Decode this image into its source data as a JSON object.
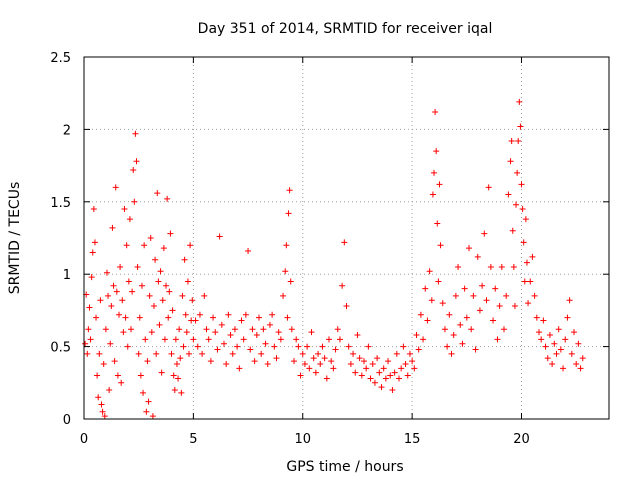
{
  "chart_data": {
    "type": "scatter",
    "title": "Day 351 of 2014, SRMTID for receiver iqal",
    "xlabel": "GPS time / hours",
    "ylabel": "SRMTID / TECUs",
    "xlim": [
      0,
      24
    ],
    "ylim": [
      0,
      2.5
    ],
    "xticks": [
      0,
      5,
      10,
      15,
      20
    ],
    "xtick_labels": [
      "0",
      "5",
      "10",
      "15",
      "20"
    ],
    "yticks": [
      0,
      0.5,
      1,
      1.5,
      2,
      2.5
    ],
    "ytick_labels": [
      "0",
      "0.5",
      "1",
      "1.5",
      "2",
      "2.5"
    ],
    "grid": true,
    "marker": "+",
    "series": [
      {
        "name": "SRMTID",
        "color": "#ff0000",
        "points": [
          [
            0.05,
            0.52
          ],
          [
            0.1,
            0.86
          ],
          [
            0.15,
            0.45
          ],
          [
            0.2,
            0.62
          ],
          [
            0.25,
            0.77
          ],
          [
            0.3,
            0.55
          ],
          [
            0.35,
            0.98
          ],
          [
            0.4,
            1.15
          ],
          [
            0.45,
            1.45
          ],
          [
            0.5,
            1.22
          ],
          [
            0.55,
            0.7
          ],
          [
            0.6,
            0.3
          ],
          [
            0.65,
            0.15
          ],
          [
            0.7,
            0.45
          ],
          [
            0.75,
            0.82
          ],
          [
            0.8,
            0.1
          ],
          [
            0.85,
            0.05
          ],
          [
            0.9,
            0.38
          ],
          [
            0.95,
            0.02
          ],
          [
            1.0,
            0.62
          ],
          [
            1.05,
            1.01
          ],
          [
            1.1,
            0.85
          ],
          [
            1.15,
            0.2
          ],
          [
            1.2,
            0.52
          ],
          [
            1.25,
            0.78
          ],
          [
            1.3,
            1.32
          ],
          [
            1.35,
            0.92
          ],
          [
            1.4,
            0.4
          ],
          [
            1.45,
            1.6
          ],
          [
            1.5,
            0.88
          ],
          [
            1.55,
            0.3
          ],
          [
            1.6,
            0.72
          ],
          [
            1.65,
            1.05
          ],
          [
            1.7,
            0.25
          ],
          [
            1.75,
            0.82
          ],
          [
            1.8,
            0.6
          ],
          [
            1.85,
            1.45
          ],
          [
            1.9,
            0.7
          ],
          [
            1.95,
            1.2
          ],
          [
            2.0,
            0.5
          ],
          [
            2.05,
            0.95
          ],
          [
            2.1,
            1.38
          ],
          [
            2.15,
            0.62
          ],
          [
            2.2,
            0.88
          ],
          [
            2.25,
            1.72
          ],
          [
            2.3,
            1.5
          ],
          [
            2.35,
            1.97
          ],
          [
            2.4,
            1.78
          ],
          [
            2.45,
            1.05
          ],
          [
            2.5,
            0.45
          ],
          [
            2.55,
            0.7
          ],
          [
            2.6,
            0.3
          ],
          [
            2.65,
            0.92
          ],
          [
            2.7,
            0.18
          ],
          [
            2.75,
            1.2
          ],
          [
            2.8,
            0.55
          ],
          [
            2.85,
            0.05
          ],
          [
            2.9,
            0.4
          ],
          [
            2.95,
            0.12
          ],
          [
            3.0,
            0.85
          ],
          [
            3.05,
            1.25
          ],
          [
            3.1,
            0.6
          ],
          [
            3.15,
            0.02
          ],
          [
            3.2,
            0.78
          ],
          [
            3.25,
            1.1
          ],
          [
            3.3,
            0.45
          ],
          [
            3.35,
            1.56
          ],
          [
            3.4,
            0.95
          ],
          [
            3.45,
            0.65
          ],
          [
            3.5,
            1.02
          ],
          [
            3.55,
            0.32
          ],
          [
            3.6,
            0.82
          ],
          [
            3.65,
            1.18
          ],
          [
            3.7,
            0.55
          ],
          [
            3.75,
            0.92
          ],
          [
            3.8,
            1.52
          ],
          [
            3.85,
            0.7
          ],
          [
            3.9,
            0.88
          ],
          [
            3.95,
            1.28
          ],
          [
            4.0,
            0.45
          ],
          [
            4.05,
            0.75
          ],
          [
            4.1,
            0.3
          ],
          [
            4.15,
            0.2
          ],
          [
            4.2,
            0.55
          ],
          [
            4.25,
            0.38
          ],
          [
            4.3,
            0.28
          ],
          [
            4.35,
            0.62
          ],
          [
            4.4,
            0.42
          ],
          [
            4.45,
            0.18
          ],
          [
            4.5,
            0.85
          ],
          [
            4.55,
            0.5
          ],
          [
            4.6,
            1.1
          ],
          [
            4.65,
            0.72
          ],
          [
            4.7,
            0.6
          ],
          [
            4.75,
            0.95
          ],
          [
            4.8,
            0.45
          ],
          [
            4.85,
            1.2
          ],
          [
            4.9,
            0.68
          ],
          [
            4.95,
            0.82
          ],
          [
            5.0,
            0.55
          ],
          [
            5.1,
            0.68
          ],
          [
            5.2,
            0.5
          ],
          [
            5.3,
            0.72
          ],
          [
            5.4,
            0.45
          ],
          [
            5.5,
            0.85
          ],
          [
            5.6,
            0.62
          ],
          [
            5.7,
            0.55
          ],
          [
            5.8,
            0.4
          ],
          [
            5.9,
            0.7
          ],
          [
            6.0,
            0.6
          ],
          [
            6.1,
            0.48
          ],
          [
            6.2,
            1.26
          ],
          [
            6.3,
            0.65
          ],
          [
            6.4,
            0.52
          ],
          [
            6.5,
            0.38
          ],
          [
            6.6,
            0.72
          ],
          [
            6.7,
            0.58
          ],
          [
            6.8,
            0.45
          ],
          [
            6.9,
            0.62
          ],
          [
            7.0,
            0.5
          ],
          [
            7.1,
            0.35
          ],
          [
            7.2,
            0.68
          ],
          [
            7.3,
            0.55
          ],
          [
            7.4,
            0.72
          ],
          [
            7.5,
            1.16
          ],
          [
            7.6,
            0.48
          ],
          [
            7.7,
            0.62
          ],
          [
            7.8,
            0.4
          ],
          [
            7.9,
            0.58
          ],
          [
            8.0,
            0.7
          ],
          [
            8.1,
            0.45
          ],
          [
            8.2,
            0.62
          ],
          [
            8.3,
            0.52
          ],
          [
            8.4,
            0.38
          ],
          [
            8.5,
            0.65
          ],
          [
            8.6,
            0.72
          ],
          [
            8.7,
            0.5
          ],
          [
            8.8,
            0.42
          ],
          [
            8.9,
            0.6
          ],
          [
            9.0,
            0.55
          ],
          [
            9.1,
            0.85
          ],
          [
            9.2,
            1.02
          ],
          [
            9.25,
            1.2
          ],
          [
            9.3,
            0.7
          ],
          [
            9.35,
            1.42
          ],
          [
            9.4,
            1.58
          ],
          [
            9.45,
            0.95
          ],
          [
            9.5,
            0.62
          ],
          [
            9.6,
            0.4
          ],
          [
            9.7,
            0.55
          ],
          [
            9.8,
            0.5
          ],
          [
            9.9,
            0.3
          ],
          [
            10.0,
            0.45
          ],
          [
            10.1,
            0.38
          ],
          [
            10.2,
            0.5
          ],
          [
            10.3,
            0.35
          ],
          [
            10.4,
            0.6
          ],
          [
            10.5,
            0.42
          ],
          [
            10.6,
            0.32
          ],
          [
            10.7,
            0.45
          ],
          [
            10.8,
            0.38
          ],
          [
            10.9,
            0.5
          ],
          [
            11.0,
            0.42
          ],
          [
            11.1,
            0.28
          ],
          [
            11.2,
            0.55
          ],
          [
            11.3,
            0.4
          ],
          [
            11.4,
            0.35
          ],
          [
            11.5,
            0.48
          ],
          [
            11.6,
            0.62
          ],
          [
            11.7,
            0.55
          ],
          [
            11.8,
            0.92
          ],
          [
            11.9,
            1.22
          ],
          [
            12.0,
            0.78
          ],
          [
            12.1,
            0.5
          ],
          [
            12.2,
            0.38
          ],
          [
            12.3,
            0.45
          ],
          [
            12.4,
            0.32
          ],
          [
            12.5,
            0.58
          ],
          [
            12.6,
            0.42
          ],
          [
            12.7,
            0.3
          ],
          [
            12.8,
            0.4
          ],
          [
            12.9,
            0.35
          ],
          [
            13.0,
            0.5
          ],
          [
            13.1,
            0.28
          ],
          [
            13.2,
            0.38
          ],
          [
            13.3,
            0.25
          ],
          [
            13.4,
            0.42
          ],
          [
            13.5,
            0.32
          ],
          [
            13.6,
            0.22
          ],
          [
            13.7,
            0.35
          ],
          [
            13.8,
            0.28
          ],
          [
            13.9,
            0.4
          ],
          [
            14.0,
            0.3
          ],
          [
            14.1,
            0.2
          ],
          [
            14.2,
            0.32
          ],
          [
            14.3,
            0.45
          ],
          [
            14.4,
            0.28
          ],
          [
            14.5,
            0.35
          ],
          [
            14.6,
            0.5
          ],
          [
            14.7,
            0.38
          ],
          [
            14.8,
            0.3
          ],
          [
            14.9,
            0.45
          ],
          [
            15.0,
            0.4
          ],
          [
            15.1,
            0.35
          ],
          [
            15.2,
            0.58
          ],
          [
            15.3,
            0.48
          ],
          [
            15.4,
            0.72
          ],
          [
            15.5,
            0.55
          ],
          [
            15.6,
            0.9
          ],
          [
            15.7,
            0.68
          ],
          [
            15.8,
            1.02
          ],
          [
            15.9,
            0.82
          ],
          [
            15.95,
            1.55
          ],
          [
            16.0,
            1.7
          ],
          [
            16.05,
            2.12
          ],
          [
            16.1,
            1.85
          ],
          [
            16.15,
            1.35
          ],
          [
            16.2,
            0.95
          ],
          [
            16.25,
            1.62
          ],
          [
            16.3,
            1.2
          ],
          [
            16.4,
            0.8
          ],
          [
            16.5,
            0.62
          ],
          [
            16.6,
            0.5
          ],
          [
            16.7,
            0.72
          ],
          [
            16.8,
            0.45
          ],
          [
            16.9,
            0.58
          ],
          [
            17.0,
            0.85
          ],
          [
            17.1,
            1.05
          ],
          [
            17.2,
            0.65
          ],
          [
            17.3,
            0.52
          ],
          [
            17.4,
            0.9
          ],
          [
            17.5,
            0.7
          ],
          [
            17.6,
            1.18
          ],
          [
            17.7,
            0.62
          ],
          [
            17.8,
            0.85
          ],
          [
            17.9,
            0.48
          ],
          [
            18.0,
            1.12
          ],
          [
            18.1,
            0.75
          ],
          [
            18.2,
            0.92
          ],
          [
            18.3,
            1.28
          ],
          [
            18.4,
            0.82
          ],
          [
            18.5,
            1.6
          ],
          [
            18.6,
            1.05
          ],
          [
            18.7,
            0.68
          ],
          [
            18.8,
            0.9
          ],
          [
            18.9,
            0.55
          ],
          [
            19.0,
            0.78
          ],
          [
            19.1,
            1.05
          ],
          [
            19.2,
            0.62
          ],
          [
            19.3,
            0.85
          ],
          [
            19.4,
            1.55
          ],
          [
            19.5,
            1.78
          ],
          [
            19.55,
            1.92
          ],
          [
            19.6,
            1.3
          ],
          [
            19.65,
            1.05
          ],
          [
            19.7,
            0.78
          ],
          [
            19.75,
            1.48
          ],
          [
            19.8,
            1.7
          ],
          [
            19.85,
            1.92
          ],
          [
            19.9,
            2.19
          ],
          [
            19.95,
            2.02
          ],
          [
            20.0,
            1.62
          ],
          [
            20.05,
            1.45
          ],
          [
            20.1,
            1.22
          ],
          [
            20.15,
            0.95
          ],
          [
            20.2,
            1.38
          ],
          [
            20.25,
            1.08
          ],
          [
            20.3,
            0.8
          ],
          [
            20.4,
            0.95
          ],
          [
            20.5,
            1.12
          ],
          [
            20.6,
            0.85
          ],
          [
            20.7,
            0.7
          ],
          [
            20.8,
            0.6
          ],
          [
            20.9,
            0.55
          ],
          [
            21.0,
            0.68
          ],
          [
            21.1,
            0.5
          ],
          [
            21.2,
            0.42
          ],
          [
            21.3,
            0.58
          ],
          [
            21.4,
            0.38
          ],
          [
            21.5,
            0.52
          ],
          [
            21.6,
            0.45
          ],
          [
            21.7,
            0.62
          ],
          [
            21.8,
            0.48
          ],
          [
            21.9,
            0.35
          ],
          [
            22.0,
            0.55
          ],
          [
            22.1,
            0.7
          ],
          [
            22.2,
            0.82
          ],
          [
            22.3,
            0.45
          ],
          [
            22.4,
            0.6
          ],
          [
            22.5,
            0.38
          ],
          [
            22.6,
            0.52
          ],
          [
            22.7,
            0.35
          ],
          [
            22.8,
            0.42
          ]
        ]
      }
    ]
  }
}
